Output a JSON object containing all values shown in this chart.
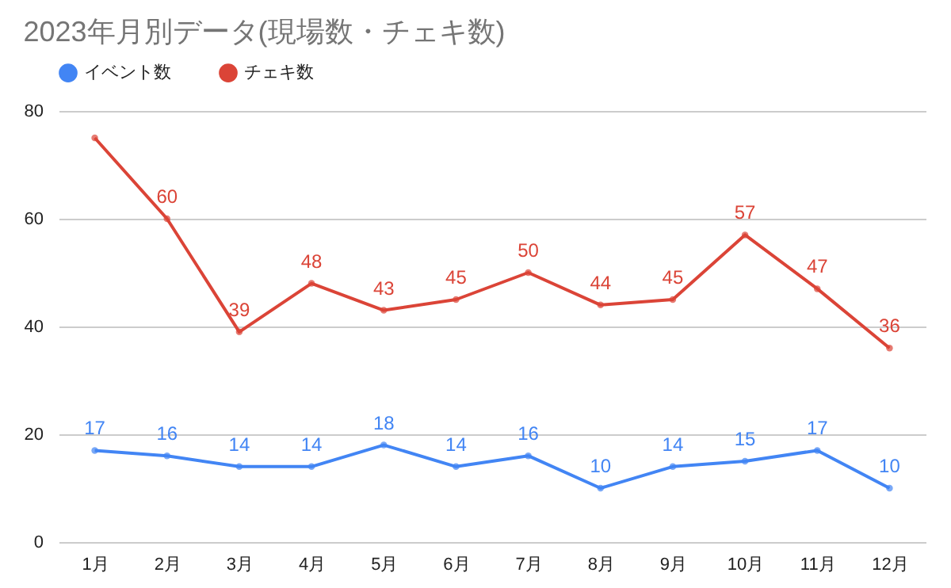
{
  "chart_data": {
    "type": "line",
    "title": "2023年月別データ(現場数・チェキ数)",
    "categories": [
      "1月",
      "2月",
      "3月",
      "4月",
      "5月",
      "6月",
      "7月",
      "8月",
      "9月",
      "10月",
      "11月",
      "12月"
    ],
    "series": [
      {
        "name": "イベント数",
        "color": "#4285f4",
        "values": [
          17,
          16,
          14,
          14,
          18,
          14,
          16,
          10,
          14,
          15,
          17,
          10
        ],
        "value_labels": [
          "17",
          "16",
          "14",
          "14",
          "18",
          "14",
          "16",
          "10",
          "14",
          "15",
          "17",
          "10"
        ]
      },
      {
        "name": "チェキ数",
        "color": "#db4437",
        "values": [
          75,
          60,
          39,
          48,
          43,
          45,
          50,
          44,
          45,
          57,
          47,
          36
        ],
        "value_labels": [
          null,
          "60",
          "39",
          "48",
          "43",
          "45",
          "50",
          "44",
          "45",
          "57",
          "47",
          "36"
        ]
      }
    ],
    "ylim": [
      0,
      80
    ],
    "yticks": [
      0,
      20,
      40,
      60,
      80
    ],
    "grid": "y",
    "legend": "top",
    "marker": "circle",
    "line_style": "solid"
  }
}
